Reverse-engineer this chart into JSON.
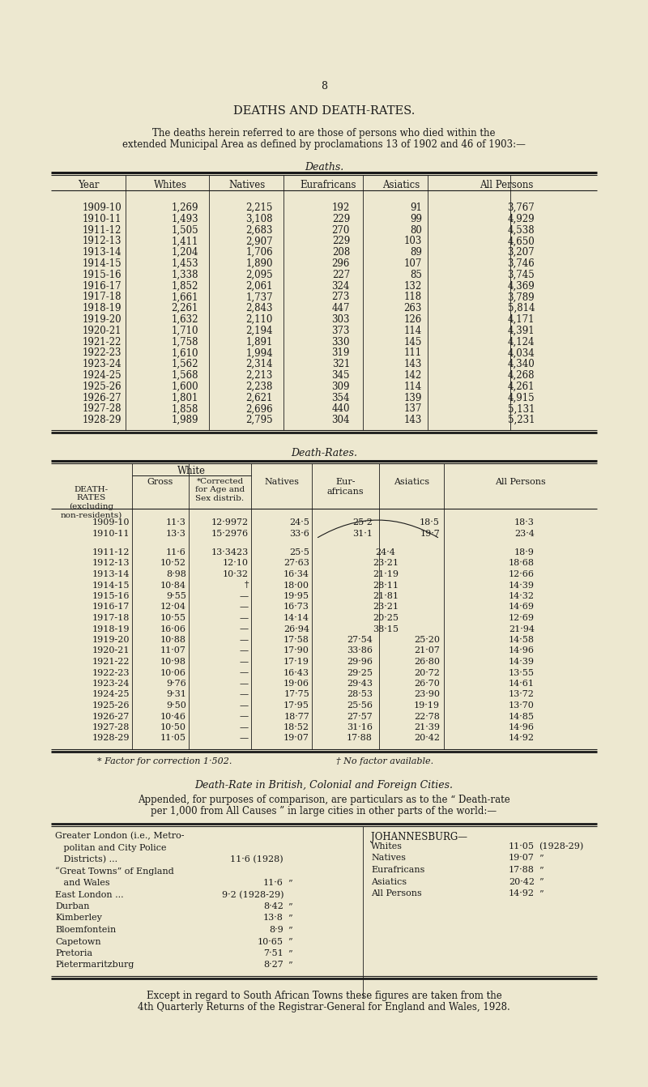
{
  "bg_color": "#ede8d0",
  "text_color": "#1a1a1a",
  "page_number": "8",
  "main_title": "DEATHS AND DEATH-RATES.",
  "intro_line1": "The deaths herein referred to are those of persons who died within the",
  "intro_line2": "extended Municipal Area as defined by proclamations 13 of 1902 and 46 of 1903:—",
  "deaths_title": "Deaths.",
  "deaths_headers": [
    "Year",
    "Whites",
    "Natives",
    "Eurafricans",
    "Asiatics",
    "All Persons"
  ],
  "deaths_data": [
    [
      "1909-10",
      "1,269",
      "2,215",
      "192",
      "91",
      "3,767"
    ],
    [
      "1910-11",
      "1,493",
      "3,108",
      "229",
      "99",
      "4,929"
    ],
    [
      "1911-12",
      "1,505",
      "2,683",
      "270",
      "80",
      "4,538"
    ],
    [
      "1912-13",
      "1,411",
      "2,907",
      "229",
      "103",
      "4,650"
    ],
    [
      "1913-14",
      "1,204",
      "1,706",
      "208",
      "89",
      "3,207"
    ],
    [
      "1914-15",
      "1,453",
      "1,890",
      "296",
      "107",
      "3,746"
    ],
    [
      "1915-16",
      "1,338",
      "2,095",
      "227",
      "85",
      "3,745"
    ],
    [
      "1916-17",
      "1,852",
      "2,061",
      "324",
      "132",
      "4,369"
    ],
    [
      "1917-18",
      "1,661",
      "1,737",
      "273",
      "118",
      "3,789"
    ],
    [
      "1918-19",
      "2,261",
      "2,843",
      "447",
      "263",
      "5,814"
    ],
    [
      "1919-20",
      "1,632",
      "2,110",
      "303",
      "126",
      "4,171"
    ],
    [
      "1920-21",
      "1,710",
      "2,194",
      "373",
      "114",
      "4,391"
    ],
    [
      "1921-22",
      "1,758",
      "1,891",
      "330",
      "145",
      "4,124"
    ],
    [
      "1922-23",
      "1,610",
      "1,994",
      "319",
      "111",
      "4,034"
    ],
    [
      "1923-24",
      "1,562",
      "2,314",
      "321",
      "143",
      "4,340"
    ],
    [
      "1924-25",
      "1,568",
      "2,213",
      "345",
      "142",
      "4,268"
    ],
    [
      "1925-26",
      "1,600",
      "2,238",
      "309",
      "114",
      "4,261"
    ],
    [
      "1926-27",
      "1,801",
      "2,621",
      "354",
      "139",
      "4,915"
    ],
    [
      "1927-28",
      "1,858",
      "2,696",
      "440",
      "137",
      "5,131"
    ],
    [
      "1928-29",
      "1,989",
      "2,795",
      "304",
      "143",
      "5,231"
    ]
  ],
  "death_rates_title": "Death-Rates.",
  "death_rates_data": [
    [
      "1909-10",
      "11·3",
      "12·9972",
      "24·5",
      "25·2",
      "18·5",
      "18·3"
    ],
    [
      "1910-11",
      "13·3",
      "15·2976",
      "33·6",
      "31·1",
      "19·7",
      "23·4"
    ],
    [
      "1911-12",
      "11·6",
      "13·3423",
      "25·5",
      "24·4",
      "",
      "18·9"
    ],
    [
      "1912-13",
      "10·52",
      "12·10",
      "27·63",
      "23·21",
      "",
      "18·68"
    ],
    [
      "1913-14",
      "8·98",
      "10·32",
      "16·34",
      "21·19",
      "",
      "12·66"
    ],
    [
      "1914-15",
      "10·84",
      "†",
      "18·00",
      "28·11",
      "",
      "14·39"
    ],
    [
      "1915-16",
      "9·55",
      "—",
      "19·95",
      "21·81",
      "",
      "14·32"
    ],
    [
      "1916-17",
      "12·04",
      "—",
      "16·73",
      "23·21",
      "",
      "14·69"
    ],
    [
      "1917-18",
      "10·55",
      "—",
      "14·14",
      "20·25",
      "",
      "12·69"
    ],
    [
      "1918-19",
      "16·06",
      "—",
      "26·94",
      "38·15",
      "",
      "21·94"
    ],
    [
      "1919-20",
      "10·88",
      "—",
      "17·58",
      "27·54",
      "25·20",
      "14·58"
    ],
    [
      "1920-21",
      "11·07",
      "—",
      "17·90",
      "33·86",
      "21·07",
      "14·96"
    ],
    [
      "1921-22",
      "10·98",
      "—",
      "17·19",
      "29·96",
      "26·80",
      "14·39"
    ],
    [
      "1922-23",
      "10·06",
      "—",
      "16·43",
      "29·25",
      "20·72",
      "13·55"
    ],
    [
      "1923-24",
      "9·76",
      "—",
      "19·06",
      "29·43",
      "26·70",
      "14·61"
    ],
    [
      "1924-25",
      "9·31",
      "—",
      "17·75",
      "28·53",
      "23·90",
      "13·72"
    ],
    [
      "1925-26",
      "9·50",
      "—",
      "17·95",
      "25·56",
      "19·19",
      "13·70"
    ],
    [
      "1926-27",
      "10·46",
      "—",
      "18·77",
      "27·57",
      "22·78",
      "14·85"
    ],
    [
      "1927-28",
      "10·50",
      "—",
      "18·52",
      "31·16",
      "21·39",
      "14·96"
    ],
    [
      "1928-29",
      "11·05",
      "—",
      "19·07",
      "17·88",
      "20·42",
      "14·92"
    ]
  ],
  "footnote1": "* Factor for correction 1·502.",
  "footnote2": "† No factor available.",
  "cities_title": "Death-Rate in British, Colonial and Foreign Cities.",
  "cities_intro1": "Appended, for purposes of comparison, are particulars as to the “ Death-rate",
  "cities_intro2": "per 1,000 from All Causes ” in large cities in other parts of the world:—",
  "right_cities_header": "JOHANNESBURG—",
  "right_cities": [
    [
      "Whites",
      "11·05 (1928-29)"
    ],
    [
      "Natives",
      "19·07"
    ],
    [
      "Eurafricans",
      "17·88"
    ],
    [
      "Asiatics",
      "20·42"
    ],
    [
      "All Persons",
      "14·92"
    ]
  ],
  "final_note1": "Except in regard to South African Towns these figures are taken from the",
  "final_note2": "4th Quarterly Returns of the Registrar-General for England and Wales, 1928."
}
